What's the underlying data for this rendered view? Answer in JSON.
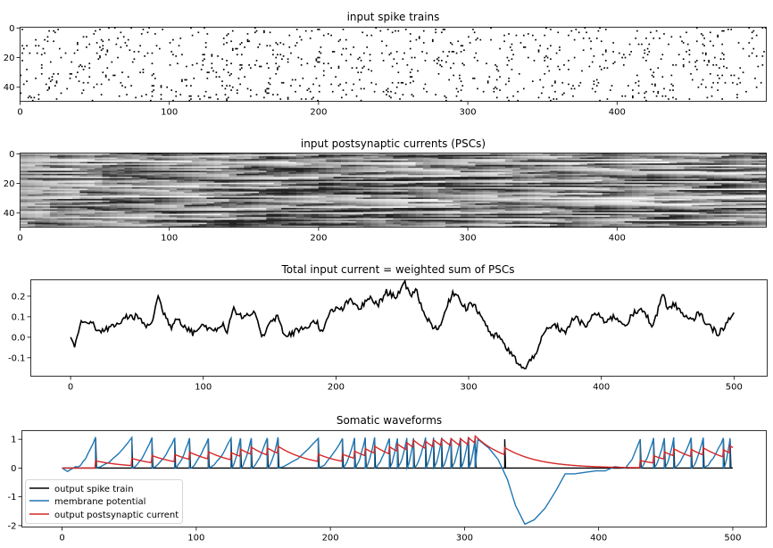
{
  "chart_data": [
    {
      "type": "heatmap",
      "title": "input spike trains",
      "rows": 50,
      "cols": 500,
      "x_ticks": [
        0,
        100,
        200,
        300,
        400
      ],
      "y_ticks": [
        0,
        20,
        40
      ],
      "colormap": "binary (black = spike)",
      "spike_probability": 0.03
    },
    {
      "type": "heatmap",
      "title": "input postsynaptic currents (PSCs)",
      "rows": 50,
      "cols": 500,
      "x_ticks": [
        0,
        100,
        200,
        300,
        400
      ],
      "y_ticks": [
        0,
        20,
        40
      ],
      "colormap": "grayscale (darker = larger current)"
    },
    {
      "type": "line",
      "title": "Total input current = weighted sum of PSCs",
      "xlim": [
        -30,
        525
      ],
      "ylim": [
        -0.19,
        0.28
      ],
      "x_ticks": [
        0,
        100,
        200,
        300,
        400,
        500
      ],
      "y_ticks": [
        0.2,
        0.1,
        0.0,
        -0.1
      ],
      "y_tick_labels": [
        "0.2",
        "0.1",
        "0.0",
        "-0.1"
      ],
      "series": [
        {
          "color": "#000000",
          "x": [
            0,
            3,
            8,
            15,
            22,
            30,
            35,
            42,
            50,
            58,
            62,
            66,
            70,
            76,
            80,
            85,
            92,
            100,
            108,
            115,
            118,
            122,
            130,
            138,
            145,
            150,
            156,
            162,
            170,
            178,
            185,
            190,
            196,
            205,
            210,
            218,
            225,
            232,
            238,
            245,
            252,
            256,
            260,
            266,
            272,
            278,
            282,
            288,
            292,
            298,
            302,
            310,
            318,
            322,
            328,
            333,
            338,
            342,
            350,
            358,
            365,
            372,
            380,
            388,
            395,
            402,
            410,
            418,
            425,
            432,
            438,
            442,
            446,
            450,
            456,
            462,
            468,
            474,
            480,
            488,
            494,
            500
          ],
          "y": [
            0.0,
            -0.04,
            0.07,
            0.08,
            0.02,
            0.05,
            0.06,
            0.1,
            0.1,
            0.05,
            0.09,
            0.2,
            0.12,
            0.05,
            0.1,
            0.06,
            0.02,
            0.06,
            0.03,
            0.07,
            0.02,
            0.14,
            0.09,
            0.12,
            0.0,
            0.08,
            0.1,
            0.0,
            0.03,
            0.05,
            0.08,
            0.02,
            0.13,
            0.14,
            0.18,
            0.14,
            0.19,
            0.16,
            0.22,
            0.2,
            0.26,
            0.2,
            0.24,
            0.12,
            0.06,
            0.04,
            0.12,
            0.22,
            0.2,
            0.14,
            0.17,
            0.1,
            0.0,
            0.01,
            -0.05,
            -0.09,
            -0.13,
            -0.16,
            -0.08,
            0.03,
            0.06,
            0.02,
            0.1,
            0.05,
            0.12,
            0.08,
            0.1,
            0.06,
            0.12,
            0.13,
            0.06,
            0.11,
            0.22,
            0.14,
            0.16,
            0.1,
            0.08,
            0.12,
            0.06,
            0.02,
            0.06,
            0.12
          ]
        }
      ]
    },
    {
      "type": "line",
      "title": "Somatic waveforms",
      "xlim": [
        -30,
        525
      ],
      "ylim": [
        -2.05,
        1.3
      ],
      "x_ticks": [
        0,
        100,
        200,
        300,
        400,
        500
      ],
      "y_ticks": [
        1,
        0,
        -1,
        -2
      ],
      "legend_position": "lower-left",
      "spike_times": [
        25,
        52,
        67,
        84,
        95,
        109,
        126,
        133,
        141,
        153,
        161,
        191,
        209,
        218,
        226,
        233,
        244,
        250,
        257,
        262,
        271,
        277,
        283,
        290,
        297,
        303,
        308,
        330,
        431,
        441,
        449,
        456,
        469,
        478,
        493,
        498
      ],
      "series": [
        {
          "name": "output spike train",
          "color": "#000000",
          "baseline": 0,
          "spike_height": 1.0
        },
        {
          "name": "membrane potential",
          "color": "#1f77b4",
          "reset": 0,
          "threshold": 1.05,
          "quiescent_segment": {
            "x": [
              310,
              318,
              325,
              332,
              338,
              345,
              352,
              360,
              368,
              375,
              382,
              390,
              398,
              405,
              412,
              420,
              425,
              431
            ],
            "y": [
              1.0,
              0.7,
              0.3,
              -0.4,
              -1.3,
              -1.95,
              -1.8,
              -1.4,
              -0.8,
              -0.2,
              -0.2,
              -0.15,
              -0.1,
              -0.1,
              0.05,
              0.0,
              0.3,
              1.0
            ]
          }
        },
        {
          "name": "output postsynaptic current",
          "color": "#d62728",
          "jump": 0.25,
          "decay_tau": 25
        }
      ]
    }
  ]
}
